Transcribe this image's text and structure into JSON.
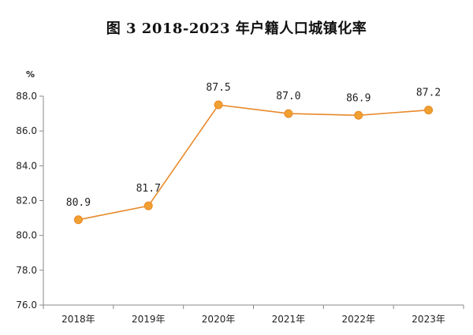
{
  "chart_data": {
    "type": "line",
    "title": "图 3   2018-2023 年户籍人口城镇化率",
    "ylabel": "%",
    "xlabel": "",
    "categories": [
      "2018年",
      "2019年",
      "2020年",
      "2021年",
      "2022年",
      "2023年"
    ],
    "values": [
      80.9,
      81.7,
      87.5,
      87.0,
      86.9,
      87.2
    ],
    "data_labels": [
      "80.9",
      "81.7",
      "87.5",
      "87.0",
      "86.9",
      "87.2"
    ],
    "ylim": [
      76.0,
      88.0
    ],
    "yticks": [
      76.0,
      78.0,
      80.0,
      82.0,
      84.0,
      86.0,
      88.0
    ],
    "ytick_labels": [
      "76.0",
      "78.0",
      "80.0",
      "82.0",
      "84.0",
      "86.0",
      "88.0"
    ],
    "grid": false,
    "legend": "none",
    "colors": {
      "line": "#e8892a",
      "marker": "#f0a030",
      "axis": "#888888"
    }
  }
}
